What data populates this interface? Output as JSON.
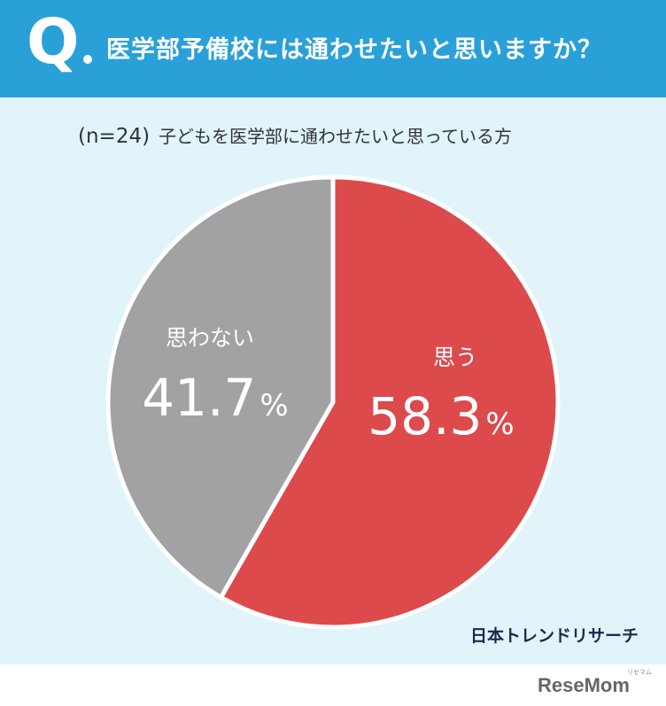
{
  "header": {
    "q_label": "Q",
    "question": "医学部予備校には通わせたいと思いますか？"
  },
  "subtitle": {
    "n": "(n=24)",
    "text": "子どもを医学部に通わせたいと思っている方"
  },
  "chart_data": {
    "type": "pie",
    "slices": [
      {
        "label": "思う",
        "value": 58.3,
        "color": "#dd4a4c"
      },
      {
        "label": "思わない",
        "value": 41.7,
        "color": "#a2a1a3"
      }
    ],
    "value_suffix": "%"
  },
  "brand": "日本トレンドリサーチ",
  "watermark": {
    "text": "ReseMom",
    "tag": "リセマム"
  }
}
